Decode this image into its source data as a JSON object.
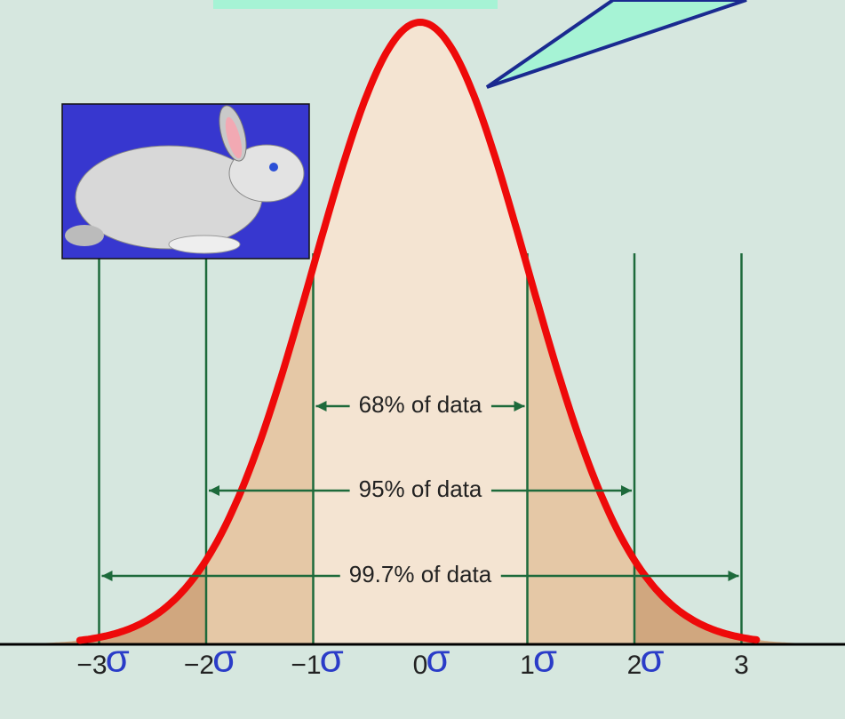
{
  "bands": [
    {
      "label": "68% of data"
    },
    {
      "label": "95% of data"
    },
    {
      "label": "99.7% of data"
    }
  ],
  "axis": {
    "ticks": [
      {
        "label": "−3",
        "unit": "σ"
      },
      {
        "label": "−2",
        "unit": "σ"
      },
      {
        "label": "−1",
        "unit": "σ"
      },
      {
        "label": "0",
        "unit": "σ"
      },
      {
        "label": "1",
        "unit": "σ"
      },
      {
        "label": "2",
        "unit": "σ"
      },
      {
        "label": "3"
      }
    ]
  }
}
